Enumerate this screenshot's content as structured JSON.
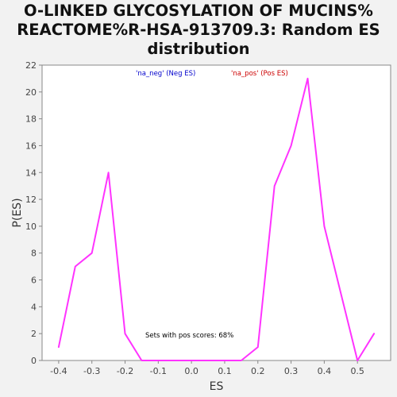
{
  "chart_data": {
    "type": "line",
    "title_lines": [
      "O-LINKED GLYCOSYLATION OF MUCINS%",
      "REACTOME%R-HSA-913709.3: Random ES",
      "distribution"
    ],
    "xlabel": "ES",
    "ylabel": "P(ES)",
    "xlim": [
      -0.45,
      0.6
    ],
    "ylim": [
      0,
      22
    ],
    "x_ticks": [
      -0.4,
      -0.3,
      -0.2,
      -0.1,
      0.0,
      0.1,
      0.2,
      0.3,
      0.4,
      0.5
    ],
    "x_tick_labels": [
      "-0.4",
      "-0.3",
      "-0.2",
      "-0.1",
      "0.0",
      "0.1",
      "0.2",
      "0.3",
      "0.4",
      "0.5"
    ],
    "y_ticks": [
      0,
      2,
      4,
      6,
      8,
      10,
      12,
      14,
      16,
      18,
      20,
      22
    ],
    "y_tick_labels": [
      "0",
      "2",
      "4",
      "6",
      "8",
      "10",
      "12",
      "14",
      "16",
      "18",
      "20",
      "22"
    ],
    "grid": false,
    "series": [
      {
        "name": "P(ES)",
        "color": "#ff33ff",
        "x": [
          -0.4,
          -0.35,
          -0.3,
          -0.25,
          -0.2,
          -0.15,
          -0.1,
          -0.05,
          0.0,
          0.05,
          0.1,
          0.15,
          0.2,
          0.25,
          0.3,
          0.35,
          0.4,
          0.45,
          0.5,
          0.55
        ],
        "y": [
          1,
          7,
          8,
          14,
          2,
          0,
          0,
          0,
          0,
          0,
          0,
          0,
          1,
          13,
          16,
          21,
          10,
          5,
          0,
          2
        ]
      }
    ],
    "legend": [
      {
        "label": "'na_neg' (Neg ES)",
        "color": "#0000cc"
      },
      {
        "label": "'na_pos' (Pos ES)",
        "color": "#cc0000"
      }
    ],
    "legend_position": "top-center",
    "annotation": "Sets with pos scores: 68%"
  }
}
